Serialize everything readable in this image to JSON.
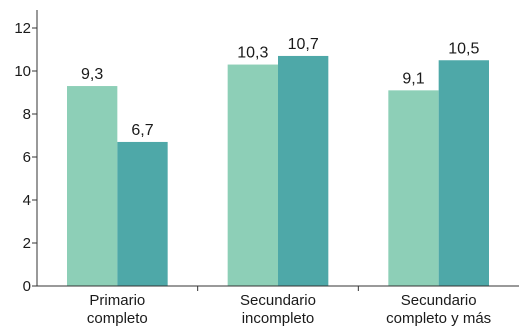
{
  "chart_data": {
    "type": "bar",
    "categories": [
      [
        "Primario",
        "completo"
      ],
      [
        "Secundario",
        "incompleto"
      ],
      [
        "Secundario",
        "completo y más"
      ]
    ],
    "series": [
      {
        "values": [
          9.3,
          10.3,
          9.1
        ],
        "labels": [
          "9,3",
          "10,3",
          "9,1"
        ],
        "color": "#8dcfb7"
      },
      {
        "values": [
          6.7,
          10.7,
          10.5
        ],
        "labels": [
          "6,7",
          "10,7",
          "10,5"
        ],
        "color": "#4ea8a8"
      }
    ],
    "ylim": [
      0,
      12
    ],
    "yticks": [
      0,
      2,
      4,
      6,
      8,
      10,
      12
    ],
    "ytick_labels": [
      "0",
      "2",
      "4",
      "6",
      "8",
      "10",
      "12"
    ],
    "title": "",
    "xlabel": "",
    "ylabel": "",
    "grid": false,
    "legend": "none"
  }
}
